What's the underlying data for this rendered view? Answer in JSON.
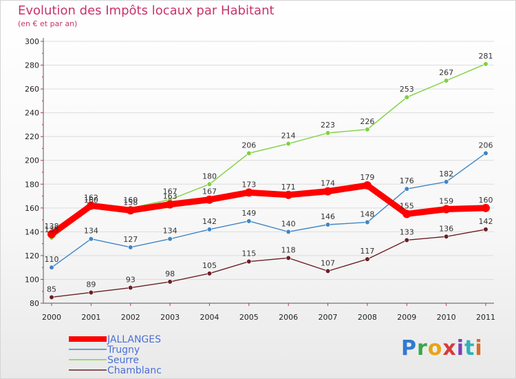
{
  "title": "Evolution des Impôts locaux par Habitant",
  "subtitle": "(en € et par an)",
  "logo_text": "Proxiti",
  "chart_data": {
    "type": "line",
    "title": "Evolution des Impôts locaux par Habitant",
    "subtitle": "(en € et par an)",
    "xlabel": "",
    "ylabel": "",
    "x": [
      "2000",
      "2001",
      "2002",
      "2003",
      "2004",
      "2005",
      "2006",
      "2007",
      "2008",
      "2009",
      "2010",
      "2011"
    ],
    "ylim": [
      80,
      300
    ],
    "yticks": [
      80,
      100,
      120,
      140,
      160,
      180,
      200,
      220,
      240,
      260,
      280,
      300
    ],
    "grid": "horizontal",
    "legend_position": "bottom-left",
    "series": [
      {
        "name": "JALLANGES",
        "color": "#ff0000",
        "values": [
          138,
          162,
          158,
          163,
          167,
          173,
          171,
          174,
          179,
          155,
          159,
          160
        ]
      },
      {
        "name": "Trugny",
        "color": "#3f86c4",
        "values": [
          110,
          134,
          127,
          134,
          142,
          149,
          140,
          146,
          148,
          176,
          182,
          206
        ]
      },
      {
        "name": "Seurre",
        "color": "#7ed140",
        "values": [
          135,
          160,
          160,
          167,
          180,
          206,
          214,
          223,
          226,
          253,
          267,
          281
        ]
      },
      {
        "name": "Chamblanc",
        "color": "#6b1f24",
        "values": [
          85,
          89,
          93,
          98,
          105,
          115,
          118,
          107,
          117,
          133,
          136,
          142
        ]
      }
    ]
  }
}
